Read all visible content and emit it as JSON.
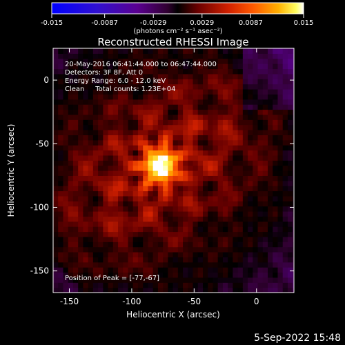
{
  "chart_data": {
    "type": "heatmap",
    "title": "Reconstructed RHESSI Image",
    "xlabel": "Heliocentric X (arcsec)",
    "ylabel": "Heliocentric Y (arcsec)",
    "xlim": [
      -163,
      30
    ],
    "ylim": [
      -167,
      25
    ],
    "x_ticks": [
      -150,
      -100,
      -50,
      0
    ],
    "y_ticks": [
      0,
      -50,
      -100,
      -150
    ],
    "colorbar": {
      "ticks": [
        "-0.015",
        "-0.0087",
        "-0.0029",
        "0.0029",
        "0.0087",
        "0.015"
      ],
      "range": [
        -0.015,
        0.015
      ],
      "units_label": "(photons cm⁻² s⁻¹ asec⁻²)",
      "colormap": [
        "#0000ff",
        "#2a00e0",
        "#5000a0",
        "#600060",
        "#000000",
        "#5a0000",
        "#b01000",
        "#ff3000",
        "#ff7000",
        "#ffb000",
        "#ffff80",
        "#ffffff"
      ]
    },
    "annotations": [
      "20-May-2016 06:41:44.000 to 06:47:44.000",
      "Detectors: 3F 8F, Att 0",
      "Energy Range: 6.0 - 12.0 keV",
      "Clean     Total counts: 1.23E+04"
    ],
    "peak_label": "Position of Peak = [-77,-67]",
    "peak": {
      "x": -77,
      "y": -67
    },
    "pixel_size_arcsec": 4
  },
  "footer": {
    "date": "5-Sep-2022 15:48"
  }
}
